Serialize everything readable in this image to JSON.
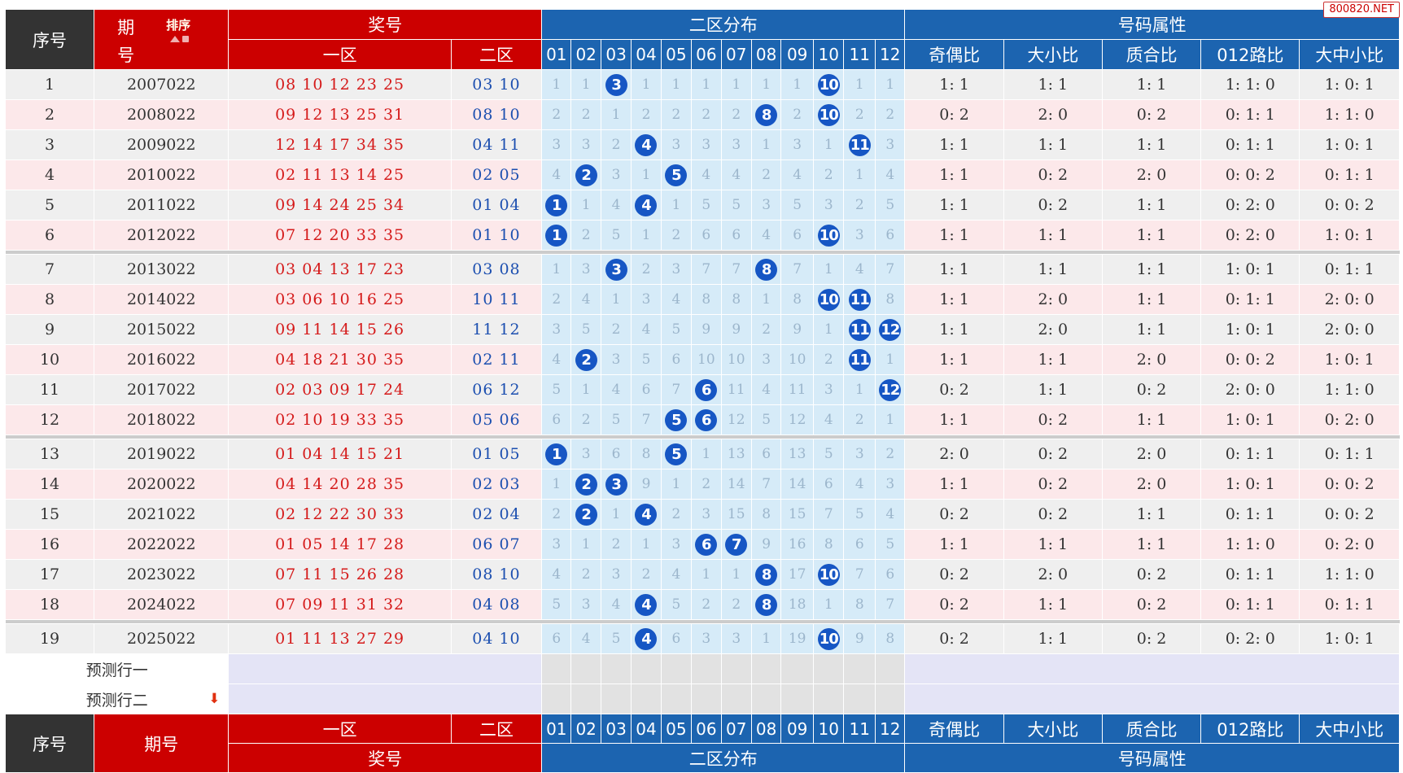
{
  "watermark": "800820.NET",
  "header": {
    "seq": "序号",
    "period_a": "期",
    "period_b": "号",
    "period_full": "期号",
    "sort_label": "排序",
    "prize": "奖号",
    "zone_one": "一区",
    "zone_two": "二区",
    "dist": "二区分布",
    "attr": "号码属性",
    "dist_numbers": [
      "01",
      "02",
      "03",
      "04",
      "05",
      "06",
      "07",
      "08",
      "09",
      "10",
      "11",
      "12"
    ],
    "attr_cols": [
      "奇偶比",
      "大小比",
      "质合比",
      "012路比",
      "大中小比"
    ]
  },
  "colors": {
    "red": "#cc0000",
    "blue": "#1c64b0",
    "dark": "#333333",
    "ball": "#1656c4",
    "front_num": "#d51a1a",
    "back_num": "#1c4fb0"
  },
  "rows": [
    {
      "seq": "1",
      "period": "2007022",
      "one": "08 10 12 23 25",
      "two": "03 10",
      "dist": [
        "1",
        "1",
        "3",
        "1",
        "1",
        "1",
        "1",
        "1",
        "1",
        "10",
        "1",
        "1"
      ],
      "hits": [
        3,
        10
      ],
      "attrs": [
        "1: 1",
        "1: 1",
        "1: 1",
        "1: 1: 0",
        "1: 0: 1"
      ]
    },
    {
      "seq": "2",
      "period": "2008022",
      "one": "09 12 13 25 31",
      "two": "08 10",
      "dist": [
        "2",
        "2",
        "1",
        "2",
        "2",
        "2",
        "2",
        "8",
        "2",
        "10",
        "2",
        "2"
      ],
      "hits": [
        8,
        10
      ],
      "attrs": [
        "0: 2",
        "2: 0",
        "0: 2",
        "0: 1: 1",
        "1: 1: 0"
      ]
    },
    {
      "seq": "3",
      "period": "2009022",
      "one": "12 14 17 34 35",
      "two": "04 11",
      "dist": [
        "3",
        "3",
        "2",
        "4",
        "3",
        "3",
        "3",
        "1",
        "3",
        "1",
        "11",
        "3"
      ],
      "hits": [
        4,
        11
      ],
      "attrs": [
        "1: 1",
        "1: 1",
        "1: 1",
        "0: 1: 1",
        "1: 0: 1"
      ]
    },
    {
      "seq": "4",
      "period": "2010022",
      "one": "02 11 13 14 25",
      "two": "02 05",
      "dist": [
        "4",
        "2",
        "3",
        "1",
        "5",
        "4",
        "4",
        "2",
        "4",
        "2",
        "1",
        "4"
      ],
      "hits": [
        2,
        5
      ],
      "attrs": [
        "1: 1",
        "0: 2",
        "2: 0",
        "0: 0: 2",
        "0: 1: 1"
      ]
    },
    {
      "seq": "5",
      "period": "2011022",
      "one": "09 14 24 25 34",
      "two": "01 04",
      "dist": [
        "1",
        "1",
        "4",
        "4",
        "1",
        "5",
        "5",
        "3",
        "5",
        "3",
        "2",
        "5"
      ],
      "hits": [
        1,
        4
      ],
      "attrs": [
        "1: 1",
        "0: 2",
        "1: 1",
        "0: 2: 0",
        "0: 0: 2"
      ]
    },
    {
      "seq": "6",
      "period": "2012022",
      "one": "07 12 20 33 35",
      "two": "01 10",
      "dist": [
        "1",
        "2",
        "5",
        "1",
        "2",
        "6",
        "6",
        "4",
        "6",
        "10",
        "3",
        "6"
      ],
      "hits": [
        1,
        10
      ],
      "attrs": [
        "1: 1",
        "1: 1",
        "1: 1",
        "0: 2: 0",
        "1: 0: 1"
      ]
    },
    {
      "seq": "7",
      "period": "2013022",
      "one": "03 04 13 17 23",
      "two": "03 08",
      "dist": [
        "1",
        "3",
        "3",
        "2",
        "3",
        "7",
        "7",
        "8",
        "7",
        "1",
        "4",
        "7"
      ],
      "hits": [
        3,
        8
      ],
      "attrs": [
        "1: 1",
        "1: 1",
        "1: 1",
        "1: 0: 1",
        "0: 1: 1"
      ]
    },
    {
      "seq": "8",
      "period": "2014022",
      "one": "03 06 10 16 25",
      "two": "10 11",
      "dist": [
        "2",
        "4",
        "1",
        "3",
        "4",
        "8",
        "8",
        "1",
        "8",
        "10",
        "11",
        "8"
      ],
      "hits": [
        10,
        11
      ],
      "attrs": [
        "1: 1",
        "2: 0",
        "1: 1",
        "0: 1: 1",
        "2: 0: 0"
      ]
    },
    {
      "seq": "9",
      "period": "2015022",
      "one": "09 11 14 15 26",
      "two": "11 12",
      "dist": [
        "3",
        "5",
        "2",
        "4",
        "5",
        "9",
        "9",
        "2",
        "9",
        "1",
        "11",
        "12"
      ],
      "hits": [
        11,
        12
      ],
      "attrs": [
        "1: 1",
        "2: 0",
        "1: 1",
        "1: 0: 1",
        "2: 0: 0"
      ]
    },
    {
      "seq": "10",
      "period": "2016022",
      "one": "04 18 21 30 35",
      "two": "02 11",
      "dist": [
        "4",
        "2",
        "3",
        "5",
        "6",
        "10",
        "10",
        "3",
        "10",
        "2",
        "11",
        "1"
      ],
      "hits": [
        2,
        11
      ],
      "attrs": [
        "1: 1",
        "1: 1",
        "2: 0",
        "0: 0: 2",
        "1: 0: 1"
      ]
    },
    {
      "seq": "11",
      "period": "2017022",
      "one": "02 03 09 17 24",
      "two": "06 12",
      "dist": [
        "5",
        "1",
        "4",
        "6",
        "7",
        "6",
        "11",
        "4",
        "11",
        "3",
        "1",
        "12"
      ],
      "hits": [
        6,
        12
      ],
      "attrs": [
        "0: 2",
        "1: 1",
        "0: 2",
        "2: 0: 0",
        "1: 1: 0"
      ]
    },
    {
      "seq": "12",
      "period": "2018022",
      "one": "02 10 19 33 35",
      "two": "05 06",
      "dist": [
        "6",
        "2",
        "5",
        "7",
        "5",
        "6",
        "12",
        "5",
        "12",
        "4",
        "2",
        "1"
      ],
      "hits": [
        5,
        6
      ],
      "attrs": [
        "1: 1",
        "0: 2",
        "1: 1",
        "1: 0: 1",
        "0: 2: 0"
      ]
    },
    {
      "seq": "13",
      "period": "2019022",
      "one": "01 04 14 15 21",
      "two": "01 05",
      "dist": [
        "1",
        "3",
        "6",
        "8",
        "5",
        "1",
        "13",
        "6",
        "13",
        "5",
        "3",
        "2"
      ],
      "hits": [
        1,
        5
      ],
      "attrs": [
        "2: 0",
        "0: 2",
        "2: 0",
        "0: 1: 1",
        "0: 1: 1"
      ]
    },
    {
      "seq": "14",
      "period": "2020022",
      "one": "04 14 20 28 35",
      "two": "02 03",
      "dist": [
        "1",
        "2",
        "3",
        "9",
        "1",
        "2",
        "14",
        "7",
        "14",
        "6",
        "4",
        "3"
      ],
      "hits": [
        2,
        3
      ],
      "attrs": [
        "1: 1",
        "0: 2",
        "2: 0",
        "1: 0: 1",
        "0: 0: 2"
      ]
    },
    {
      "seq": "15",
      "period": "2021022",
      "one": "02 12 22 30 33",
      "two": "02 04",
      "dist": [
        "2",
        "2",
        "1",
        "4",
        "2",
        "3",
        "15",
        "8",
        "15",
        "7",
        "5",
        "4"
      ],
      "hits": [
        2,
        4
      ],
      "attrs": [
        "0: 2",
        "0: 2",
        "1: 1",
        "0: 1: 1",
        "0: 0: 2"
      ]
    },
    {
      "seq": "16",
      "period": "2022022",
      "one": "01 05 14 17 28",
      "two": "06 07",
      "dist": [
        "3",
        "1",
        "2",
        "1",
        "3",
        "6",
        "7",
        "9",
        "16",
        "8",
        "6",
        "5"
      ],
      "hits": [
        6,
        7
      ],
      "attrs": [
        "1: 1",
        "1: 1",
        "1: 1",
        "1: 1: 0",
        "0: 2: 0"
      ]
    },
    {
      "seq": "17",
      "period": "2023022",
      "one": "07 11 15 26 28",
      "two": "08 10",
      "dist": [
        "4",
        "2",
        "3",
        "2",
        "4",
        "1",
        "1",
        "8",
        "17",
        "10",
        "7",
        "6"
      ],
      "hits": [
        8,
        10
      ],
      "attrs": [
        "0: 2",
        "2: 0",
        "0: 2",
        "0: 1: 1",
        "1: 1: 0"
      ]
    },
    {
      "seq": "18",
      "period": "2024022",
      "one": "07 09 11 31 32",
      "two": "04 08",
      "dist": [
        "5",
        "3",
        "4",
        "4",
        "5",
        "2",
        "2",
        "8",
        "18",
        "1",
        "8",
        "7"
      ],
      "hits": [
        4,
        8
      ],
      "attrs": [
        "0: 2",
        "1: 1",
        "0: 2",
        "0: 1: 1",
        "0: 1: 1"
      ]
    },
    {
      "seq": "19",
      "period": "2025022",
      "one": "01 11 13 27 29",
      "two": "04 10",
      "dist": [
        "6",
        "4",
        "5",
        "4",
        "6",
        "3",
        "3",
        "1",
        "19",
        "10",
        "9",
        "8"
      ],
      "hits": [
        4,
        10
      ],
      "attrs": [
        "0: 2",
        "1: 1",
        "0: 2",
        "0: 2: 0",
        "1: 0: 1"
      ]
    }
  ],
  "predict": {
    "row1": "预测行一",
    "row2": "预测行二"
  }
}
